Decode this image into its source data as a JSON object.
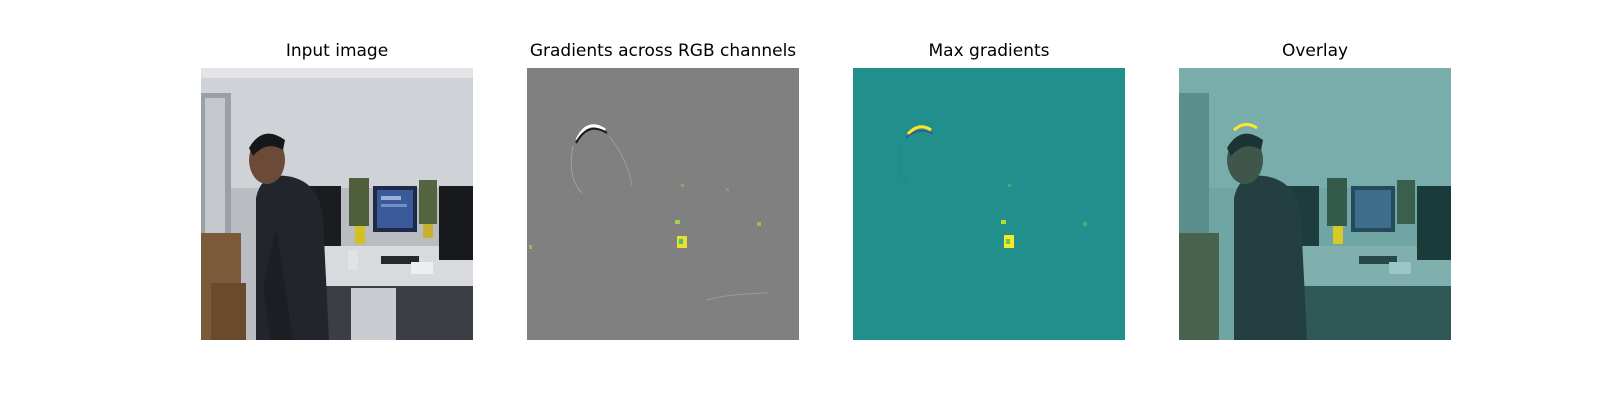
{
  "figure": {
    "panels": [
      {
        "title": "Input image",
        "content": "photo"
      },
      {
        "title": "Gradients across RGB channels",
        "content": "gradient-rgb"
      },
      {
        "title": "Max gradients",
        "content": "gradient-max"
      },
      {
        "title": "Overlay",
        "content": "overlay"
      }
    ]
  },
  "colors": {
    "gradient_gray": "#808080",
    "viridis_mid": "#21908d",
    "viridis_high": "#fde725",
    "viridis_green": "#5ec962",
    "overlay_tint": "#2a8f8a"
  }
}
